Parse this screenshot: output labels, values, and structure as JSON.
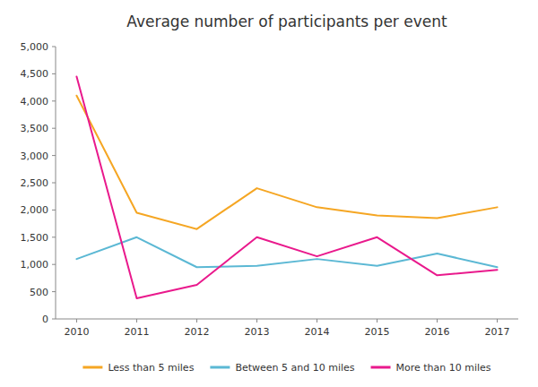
{
  "chart_data": {
    "type": "line",
    "title": "Average number of participants per event",
    "categories": [
      "2010",
      "2011",
      "2012",
      "2013",
      "2014",
      "2015",
      "2016",
      "2017"
    ],
    "series": [
      {
        "name": "Less than 5 miles",
        "color": "#f5a623",
        "values": [
          4100,
          1950,
          1650,
          2400,
          2050,
          1900,
          1850,
          2050
        ]
      },
      {
        "name": "Between 5 and 10 miles",
        "color": "#5bb8d4",
        "values": [
          1100,
          1500,
          950,
          975,
          1100,
          975,
          1200,
          950
        ]
      },
      {
        "name": "More than 10 miles",
        "color": "#e9198c",
        "values": [
          4450,
          380,
          625,
          1500,
          1150,
          1500,
          800,
          900
        ]
      }
    ],
    "ylim": [
      0,
      5000
    ],
    "yticks": [
      0,
      500,
      {
        "value": 1000,
        "label": "1,000"
      },
      {
        "value": 1500,
        "label": "1,500"
      },
      {
        "value": 2000,
        "label": "2,000"
      },
      {
        "value": 2500,
        "label": "2,500"
      },
      {
        "value": 3000,
        "label": "3,000"
      },
      {
        "value": 3500,
        "label": "3,500"
      },
      {
        "value": 4000,
        "label": "4,000"
      },
      {
        "value": 4500,
        "label": "4,500"
      },
      {
        "value": 5000,
        "label": "5,000"
      }
    ],
    "grid": false,
    "legend": "bottom"
  }
}
